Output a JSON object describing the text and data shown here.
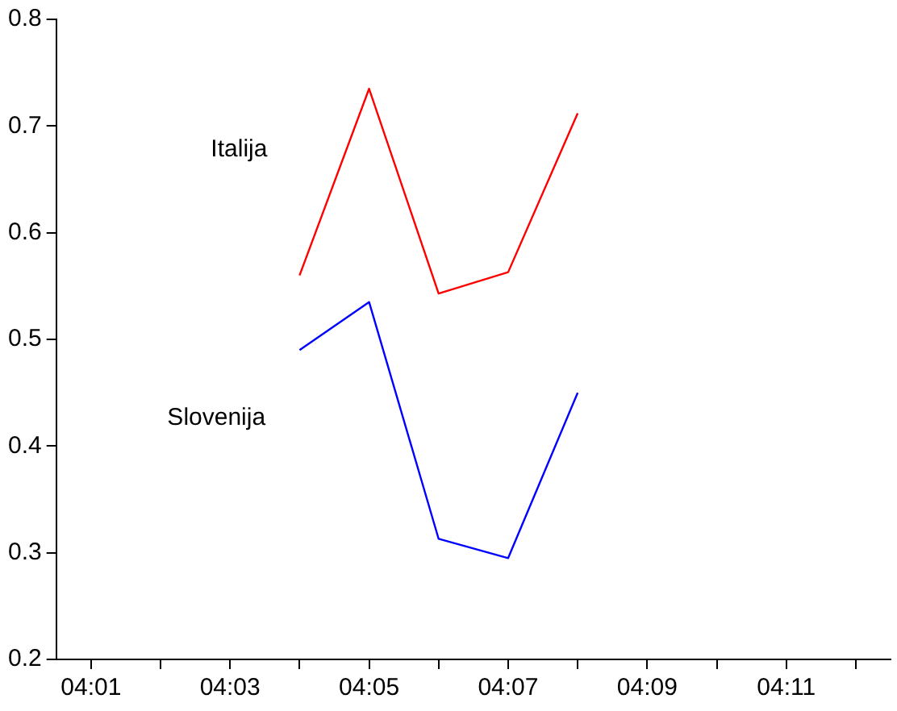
{
  "chart_data": {
    "type": "line",
    "categories": [
      "04:01",
      null,
      "04:03",
      null,
      "04:05",
      null,
      "04:07",
      null,
      "04:09",
      null,
      "04:11",
      null
    ],
    "series": [
      {
        "name": "Italija",
        "color": "#ff0000",
        "values": [
          null,
          null,
          null,
          0.56,
          0.735,
          0.543,
          0.563,
          0.712,
          null,
          null,
          null,
          null
        ]
      },
      {
        "name": "Slovenija",
        "color": "#0000ff",
        "values": [
          null,
          null,
          null,
          0.49,
          0.535,
          0.313,
          0.295,
          0.45,
          null,
          null,
          null,
          null
        ]
      }
    ],
    "ylim": [
      0.2,
      0.8
    ],
    "yticks": [
      0.2,
      0.3,
      0.4,
      0.5,
      0.6,
      0.7,
      0.8
    ],
    "grid": false,
    "legend": false,
    "marker": "none",
    "line_style": "solid"
  }
}
